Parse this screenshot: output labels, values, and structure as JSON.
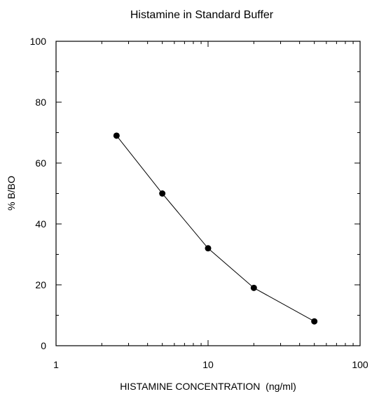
{
  "chart_data": {
    "type": "line",
    "title": "Histamine in Standard Buffer",
    "xlabel": "HISTAMINE CONCENTRATION  (ng/ml)",
    "ylabel": "% B/BO",
    "x_scale": "log",
    "xlim": [
      1,
      100
    ],
    "ylim": [
      0,
      100
    ],
    "x_ticks": [
      1,
      10,
      100
    ],
    "x_tick_labels": [
      "1",
      "10",
      "100"
    ],
    "y_ticks": [
      0,
      20,
      40,
      60,
      80,
      100
    ],
    "y_tick_labels": [
      "0",
      "20",
      "40",
      "60",
      "80",
      "100"
    ],
    "grid": false,
    "legend": "none",
    "series": [
      {
        "x": [
          2.5,
          5,
          10,
          20,
          50
        ],
        "y": [
          69,
          50,
          32,
          19,
          8
        ],
        "color": "#000000",
        "marker": "circle"
      }
    ]
  }
}
